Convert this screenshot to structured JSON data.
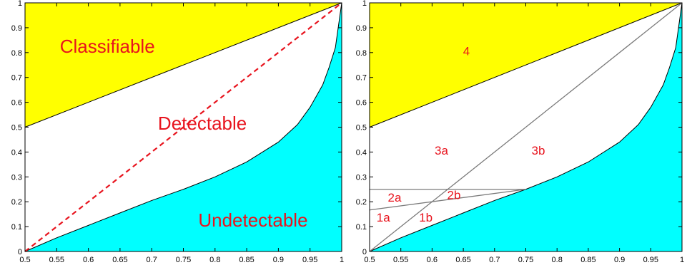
{
  "chart_data": [
    {
      "type": "area",
      "title": "",
      "xlabel": "",
      "ylabel": "",
      "xlim": [
        0.5,
        1
      ],
      "ylim": [
        0,
        1
      ],
      "x_ticks": [
        "0.5",
        "0.55",
        "0.6",
        "0.65",
        "0.7",
        "0.75",
        "0.8",
        "0.85",
        "0.9",
        "0.95",
        "1"
      ],
      "y_ticks": [
        "0",
        "0.1",
        "0.2",
        "0.3",
        "0.4",
        "0.5",
        "0.6",
        "0.7",
        "0.8",
        "0.9",
        "1"
      ],
      "grid": false,
      "colors": {
        "classifiable": "#ffff00",
        "undetectable": "#00ffff",
        "diagonal": "#e8141e",
        "labels": "#e8141e"
      },
      "series": [
        {
          "name": "Classifiable boundary",
          "x": [
            0.5,
            1
          ],
          "y": [
            0.5,
            1
          ]
        },
        {
          "name": "Undetectable boundary",
          "x": [
            0.5,
            0.55,
            0.6,
            0.65,
            0.7,
            0.75,
            0.8,
            0.85,
            0.9,
            0.93,
            0.95,
            0.97,
            0.98,
            0.99,
            1
          ],
          "y": [
            0,
            0.055,
            0.105,
            0.155,
            0.205,
            0.25,
            0.3,
            0.36,
            0.44,
            0.51,
            0.58,
            0.67,
            0.74,
            0.82,
            1
          ]
        },
        {
          "name": "Diagonal",
          "x": [
            0.5,
            1
          ],
          "y": [
            0,
            1
          ]
        }
      ],
      "annotations": [
        {
          "text": "Classifiable",
          "x": 0.63,
          "y": 0.8
        },
        {
          "text": "Detectable",
          "x": 0.78,
          "y": 0.49
        },
        {
          "text": "Undetectable",
          "x": 0.86,
          "y": 0.1
        }
      ]
    },
    {
      "type": "area",
      "title": "",
      "xlabel": "",
      "ylabel": "",
      "xlim": [
        0.5,
        1
      ],
      "ylim": [
        0,
        1
      ],
      "x_ticks": [
        "0.5",
        "0.55",
        "0.6",
        "0.65",
        "0.7",
        "0.75",
        "0.8",
        "0.85",
        "0.9",
        "0.95",
        "1"
      ],
      "y_ticks": [
        "0",
        "0.1",
        "0.2",
        "0.3",
        "0.4",
        "0.5",
        "0.6",
        "0.7",
        "0.8",
        "0.9",
        "1"
      ],
      "grid": false,
      "colors": {
        "classifiable": "#ffff00",
        "undetectable": "#00ffff",
        "lines": "#7a7a7a",
        "labels": "#e8141e"
      },
      "series": [
        {
          "name": "Classifiable boundary",
          "x": [
            0.5,
            1
          ],
          "y": [
            0.5,
            1
          ]
        },
        {
          "name": "Undetectable boundary",
          "x": [
            0.5,
            0.55,
            0.6,
            0.65,
            0.7,
            0.75,
            0.8,
            0.85,
            0.9,
            0.93,
            0.95,
            0.97,
            0.98,
            0.99,
            1
          ],
          "y": [
            0,
            0.055,
            0.105,
            0.155,
            0.205,
            0.25,
            0.3,
            0.36,
            0.44,
            0.51,
            0.58,
            0.67,
            0.74,
            0.82,
            1
          ]
        },
        {
          "name": "Diagonal",
          "x": [
            0.5,
            1
          ],
          "y": [
            0,
            1
          ]
        },
        {
          "name": "Horizontal line y=0.25",
          "x": [
            0.5,
            0.75
          ],
          "y": [
            0.25,
            0.25
          ]
        },
        {
          "name": "Line to (0.75, 0.25)",
          "x": [
            0.5,
            0.75
          ],
          "y": [
            0.167,
            0.25
          ]
        }
      ],
      "annotations": [
        {
          "text": "4",
          "x": 0.655,
          "y": 0.79
        },
        {
          "text": "3a",
          "x": 0.615,
          "y": 0.39
        },
        {
          "text": "3b",
          "x": 0.77,
          "y": 0.39
        },
        {
          "text": "2a",
          "x": 0.54,
          "y": 0.2
        },
        {
          "text": "2b",
          "x": 0.635,
          "y": 0.21
        },
        {
          "text": "1a",
          "x": 0.522,
          "y": 0.12
        },
        {
          "text": "1b",
          "x": 0.59,
          "y": 0.12
        }
      ]
    }
  ]
}
